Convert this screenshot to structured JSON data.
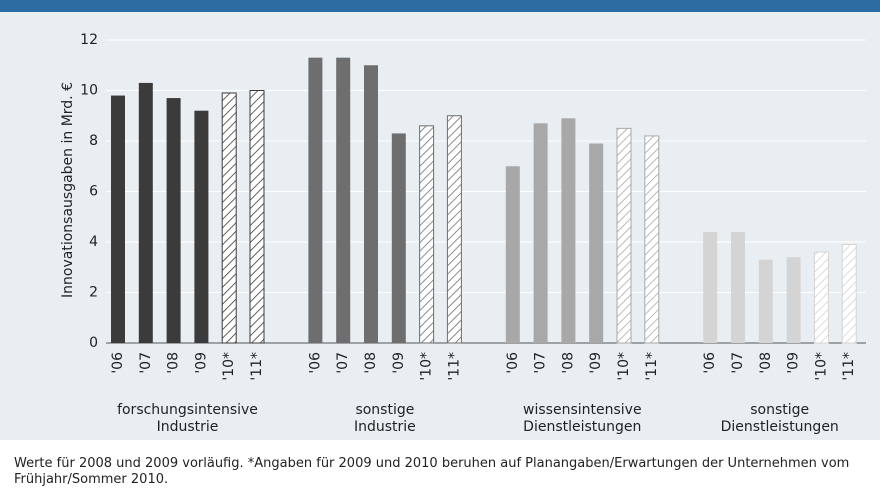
{
  "chart_data": {
    "type": "bar",
    "y_label": "Innovationsausgaben in Mrd. €",
    "categories": [
      "'06",
      "'07",
      "'08",
      "'09",
      "'10*",
      "'11*"
    ],
    "hatched": [
      false,
      false,
      false,
      false,
      true,
      true
    ],
    "series": [
      {
        "name": "forschungsintensive Industrie",
        "color": "#3b3b3b",
        "values": [
          9.8,
          10.3,
          9.7,
          9.2,
          9.9,
          10.0
        ]
      },
      {
        "name": "sonstige Industrie",
        "color": "#6e6e6e",
        "values": [
          11.3,
          11.3,
          11.0,
          8.3,
          8.6,
          9.0
        ]
      },
      {
        "name": "wissensintensive Dienstleistungen",
        "color": "#a8a8a8",
        "values": [
          7.0,
          8.7,
          8.9,
          7.9,
          8.5,
          8.2
        ]
      },
      {
        "name": "sonstige Dienstleistungen",
        "color": "#d4d4d4",
        "values": [
          4.4,
          4.4,
          3.3,
          3.4,
          3.6,
          3.9
        ]
      }
    ],
    "ylim": [
      0,
      12
    ],
    "yticks": [
      0,
      2,
      4,
      6,
      8,
      10,
      12
    ],
    "grid": true,
    "note": "Werte für 2008 und 2009 vorläufig. *Angaben für 2009 und 2010 beruhen auf Planangaben/Erwartungen der Unternehmen vom Frühjahr/Sommer 2010."
  }
}
